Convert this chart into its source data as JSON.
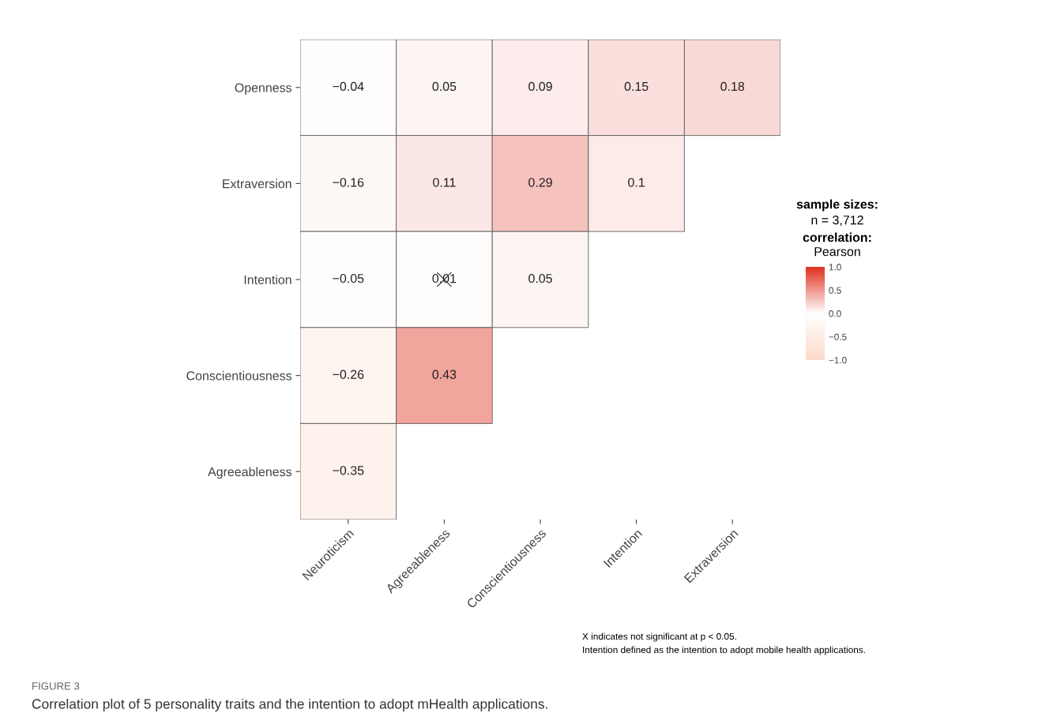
{
  "chart_data": {
    "type": "heatmap",
    "title": "Correlation plot of 5 personality traits and the intention to adopt mHealth applications.",
    "categories": [
      "Neuroticism",
      "Agreeableness",
      "Conscientiousness",
      "Intention",
      "Extraversion"
    ],
    "y_categories": [
      "Openness",
      "Extraversion",
      "Intention",
      "Conscientiousness",
      "Agreeableness"
    ],
    "cells": [
      [
        -0.04,
        0.05,
        0.09,
        0.15,
        0.18
      ],
      [
        -0.16,
        0.11,
        0.29,
        0.1,
        null
      ],
      [
        -0.05,
        0.01,
        0.05,
        null,
        null
      ],
      [
        -0.26,
        0.43,
        null,
        null,
        null
      ],
      [
        -0.35,
        null,
        null,
        null,
        null
      ]
    ],
    "data_labels": true,
    "colors": [
      "#fcd9c8",
      "#ffffff",
      "#e0301e"
    ],
    "clim": [
      -1,
      1
    ],
    "cticks": [
      {
        "value": 1,
        "label": "1.0"
      },
      {
        "value": 0.5,
        "label": "0.5"
      },
      {
        "value": 0,
        "label": "0.0"
      },
      {
        "value": -0.5,
        "label": "−0.5"
      },
      {
        "value": -1,
        "label": "−1.0"
      }
    ],
    "clabel": "Pearson",
    "annotations": [
      "sample sizes:",
      "n = 3,712",
      "correlation:",
      "X indicates not significant at p < 0.05.",
      "Intention defined as the intention to adopt mobile health applications.",
      "FIGURE 3"
    ]
  }
}
